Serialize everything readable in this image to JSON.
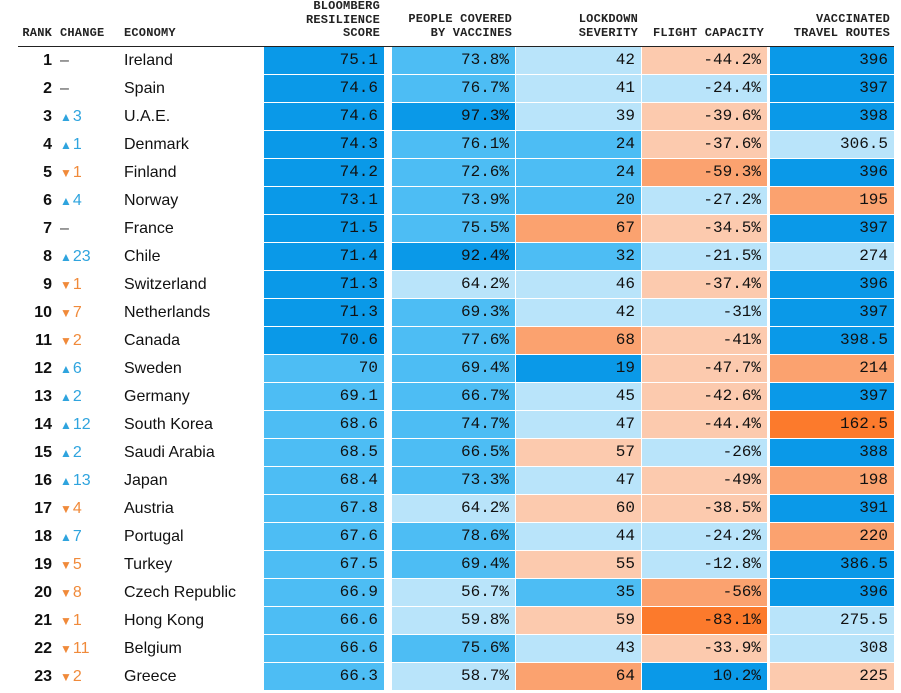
{
  "chart_data": {
    "type": "table",
    "columns": {
      "rank": "RANK",
      "change": "CHANGE",
      "economy": "ECONOMY",
      "score": "BLOOMBERG\nRESILIENCE\nSCORE",
      "vaccines": "PEOPLE COVERED\nBY VACCINES",
      "lockdown": "LOCKDOWN\nSEVERITY",
      "flight": "FLIGHT CAPACITY",
      "routes": "VACCINATED\nTRAVEL ROUTES"
    },
    "rows": [
      {
        "rank": "1",
        "change_dir": "same",
        "change": "–",
        "economy": "Ireland",
        "score": "75.1",
        "vaccines": "73.8%",
        "lockdown": "42",
        "flight": "-44.2%",
        "routes": "396"
      },
      {
        "rank": "2",
        "change_dir": "same",
        "change": "–",
        "economy": "Spain",
        "score": "74.6",
        "vaccines": "76.7%",
        "lockdown": "41",
        "flight": "-24.4%",
        "routes": "397"
      },
      {
        "rank": "3",
        "change_dir": "up",
        "change": "3",
        "economy": "U.A.E.",
        "score": "74.6",
        "vaccines": "97.3%",
        "lockdown": "39",
        "flight": "-39.6%",
        "routes": "398"
      },
      {
        "rank": "4",
        "change_dir": "up",
        "change": "1",
        "economy": "Denmark",
        "score": "74.3",
        "vaccines": "76.1%",
        "lockdown": "24",
        "flight": "-37.6%",
        "routes": "306.5"
      },
      {
        "rank": "5",
        "change_dir": "down",
        "change": "1",
        "economy": "Finland",
        "score": "74.2",
        "vaccines": "72.6%",
        "lockdown": "24",
        "flight": "-59.3%",
        "routes": "396"
      },
      {
        "rank": "6",
        "change_dir": "up",
        "change": "4",
        "economy": "Norway",
        "score": "73.1",
        "vaccines": "73.9%",
        "lockdown": "20",
        "flight": "-27.2%",
        "routes": "195"
      },
      {
        "rank": "7",
        "change_dir": "same",
        "change": "–",
        "economy": "France",
        "score": "71.5",
        "vaccines": "75.5%",
        "lockdown": "67",
        "flight": "-34.5%",
        "routes": "397"
      },
      {
        "rank": "8",
        "change_dir": "up",
        "change": "23",
        "economy": "Chile",
        "score": "71.4",
        "vaccines": "92.4%",
        "lockdown": "32",
        "flight": "-21.5%",
        "routes": "274"
      },
      {
        "rank": "9",
        "change_dir": "down",
        "change": "1",
        "economy": "Switzerland",
        "score": "71.3",
        "vaccines": "64.2%",
        "lockdown": "46",
        "flight": "-37.4%",
        "routes": "396"
      },
      {
        "rank": "10",
        "change_dir": "down",
        "change": "7",
        "economy": "Netherlands",
        "score": "71.3",
        "vaccines": "69.3%",
        "lockdown": "42",
        "flight": "-31%",
        "routes": "397"
      },
      {
        "rank": "11",
        "change_dir": "down",
        "change": "2",
        "economy": "Canada",
        "score": "70.6",
        "vaccines": "77.6%",
        "lockdown": "68",
        "flight": "-41%",
        "routes": "398.5"
      },
      {
        "rank": "12",
        "change_dir": "up",
        "change": "6",
        "economy": "Sweden",
        "score": "70",
        "vaccines": "69.4%",
        "lockdown": "19",
        "flight": "-47.7%",
        "routes": "214"
      },
      {
        "rank": "13",
        "change_dir": "up",
        "change": "2",
        "economy": "Germany",
        "score": "69.1",
        "vaccines": "66.7%",
        "lockdown": "45",
        "flight": "-42.6%",
        "routes": "397"
      },
      {
        "rank": "14",
        "change_dir": "up",
        "change": "12",
        "economy": "South Korea",
        "score": "68.6",
        "vaccines": "74.7%",
        "lockdown": "47",
        "flight": "-44.4%",
        "routes": "162.5"
      },
      {
        "rank": "15",
        "change_dir": "up",
        "change": "2",
        "economy": "Saudi Arabia",
        "score": "68.5",
        "vaccines": "66.5%",
        "lockdown": "57",
        "flight": "-26%",
        "routes": "388"
      },
      {
        "rank": "16",
        "change_dir": "up",
        "change": "13",
        "economy": "Japan",
        "score": "68.4",
        "vaccines": "73.3%",
        "lockdown": "47",
        "flight": "-49%",
        "routes": "198"
      },
      {
        "rank": "17",
        "change_dir": "down",
        "change": "4",
        "economy": "Austria",
        "score": "67.8",
        "vaccines": "64.2%",
        "lockdown": "60",
        "flight": "-38.5%",
        "routes": "391"
      },
      {
        "rank": "18",
        "change_dir": "up",
        "change": "7",
        "economy": "Portugal",
        "score": "67.6",
        "vaccines": "78.6%",
        "lockdown": "44",
        "flight": "-24.2%",
        "routes": "220"
      },
      {
        "rank": "19",
        "change_dir": "down",
        "change": "5",
        "economy": "Turkey",
        "score": "67.5",
        "vaccines": "69.4%",
        "lockdown": "55",
        "flight": "-12.8%",
        "routes": "386.5"
      },
      {
        "rank": "20",
        "change_dir": "down",
        "change": "8",
        "economy": "Czech Republic",
        "score": "66.9",
        "vaccines": "56.7%",
        "lockdown": "35",
        "flight": "-56%",
        "routes": "396"
      },
      {
        "rank": "21",
        "change_dir": "down",
        "change": "1",
        "economy": "Hong Kong",
        "score": "66.6",
        "vaccines": "59.8%",
        "lockdown": "59",
        "flight": "-83.1%",
        "routes": "275.5"
      },
      {
        "rank": "22",
        "change_dir": "down",
        "change": "11",
        "economy": "Belgium",
        "score": "66.6",
        "vaccines": "75.6%",
        "lockdown": "43",
        "flight": "-33.9%",
        "routes": "308"
      },
      {
        "rank": "23",
        "change_dir": "down",
        "change": "2",
        "economy": "Greece",
        "score": "66.3",
        "vaccines": "58.7%",
        "lockdown": "64",
        "flight": "10.2%",
        "routes": "225"
      }
    ],
    "colors": {
      "blue_dark": "#0a99e8",
      "blue_mid": "#4dbdf4",
      "blue_light": "#b9e4fa",
      "orange_light": "#fccaae",
      "orange_mid": "#fba26f",
      "orange_dark": "#fc7a2c",
      "arrow_up": "#2fa4de",
      "arrow_down": "#f08a3a"
    },
    "cell_tones": {
      "score": [
        "blue_dark",
        "blue_dark",
        "blue_dark",
        "blue_dark",
        "blue_dark",
        "blue_dark",
        "blue_dark",
        "blue_dark",
        "blue_dark",
        "blue_dark",
        "blue_dark",
        "blue_mid",
        "blue_mid",
        "blue_mid",
        "blue_mid",
        "blue_mid",
        "blue_mid",
        "blue_mid",
        "blue_mid",
        "blue_mid",
        "blue_mid",
        "blue_mid",
        "blue_mid"
      ],
      "vaccines": [
        "blue_mid",
        "blue_mid",
        "blue_dark",
        "blue_mid",
        "blue_mid",
        "blue_mid",
        "blue_mid",
        "blue_dark",
        "blue_light",
        "blue_mid",
        "blue_mid",
        "blue_mid",
        "blue_mid",
        "blue_mid",
        "blue_mid",
        "blue_mid",
        "blue_light",
        "blue_mid",
        "blue_mid",
        "blue_light",
        "blue_light",
        "blue_mid",
        "blue_light"
      ],
      "lockdown": [
        "blue_light",
        "blue_light",
        "blue_light",
        "blue_mid",
        "blue_mid",
        "blue_mid",
        "orange_mid",
        "blue_mid",
        "blue_light",
        "blue_light",
        "orange_mid",
        "blue_dark",
        "blue_light",
        "blue_light",
        "orange_light",
        "blue_light",
        "orange_light",
        "blue_light",
        "orange_light",
        "blue_mid",
        "orange_light",
        "blue_light",
        "orange_mid"
      ],
      "flight": [
        "orange_light",
        "blue_light",
        "orange_light",
        "orange_light",
        "orange_mid",
        "blue_light",
        "orange_light",
        "blue_light",
        "orange_light",
        "blue_light",
        "orange_light",
        "orange_light",
        "orange_light",
        "orange_light",
        "blue_light",
        "orange_light",
        "orange_light",
        "blue_light",
        "blue_light",
        "orange_mid",
        "orange_dark",
        "orange_light",
        "blue_dark"
      ],
      "routes": [
        "blue_dark",
        "blue_dark",
        "blue_dark",
        "blue_light",
        "blue_dark",
        "orange_mid",
        "blue_dark",
        "blue_light",
        "blue_dark",
        "blue_dark",
        "blue_dark",
        "orange_mid",
        "blue_dark",
        "orange_dark",
        "blue_dark",
        "orange_mid",
        "blue_dark",
        "orange_mid",
        "blue_dark",
        "blue_dark",
        "blue_light",
        "blue_light",
        "orange_light"
      ]
    }
  }
}
